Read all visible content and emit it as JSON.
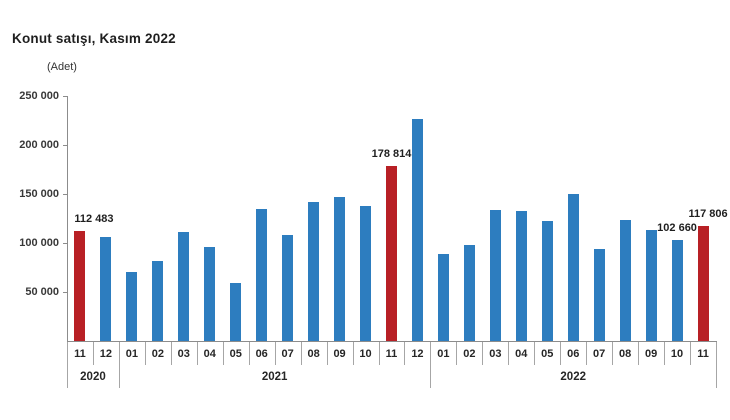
{
  "chart_data": {
    "type": "bar",
    "title": "Konut satışı, Kasım 2022",
    "unit": "(Adet)",
    "ylim": [
      0,
      250000
    ],
    "grid": false,
    "legend": null,
    "bar_color": "#2d7dbf",
    "highlight_color": "#b82025",
    "axis_color": "#8c8c8c",
    "yticks": [
      {
        "value": 250000,
        "label": "250 000"
      },
      {
        "value": 200000,
        "label": "200 000"
      },
      {
        "value": 150000,
        "label": "150 000"
      },
      {
        "value": 100000,
        "label": "100 000"
      },
      {
        "value": 50000,
        "label": "50 000"
      }
    ],
    "categories": [
      "11",
      "12",
      "01",
      "02",
      "03",
      "04",
      "05",
      "06",
      "07",
      "08",
      "09",
      "10",
      "11",
      "12",
      "01",
      "02",
      "03",
      "04",
      "05",
      "06",
      "07",
      "08",
      "09",
      "10",
      "11"
    ],
    "values": [
      112483,
      105981,
      70587,
      81222,
      111241,
      95863,
      59166,
      134731,
      107785,
      141400,
      147143,
      137401,
      178814,
      226503,
      88306,
      97587,
      134170,
      133058,
      122768,
      150509,
      93902,
      123491,
      113402,
      102660,
      117806
    ],
    "highlight_indices": [
      0,
      12,
      24
    ],
    "data_labels": [
      {
        "index": 0,
        "text": "112 483",
        "dx": 14
      },
      {
        "index": 12,
        "text": "178 814",
        "dx": 0
      },
      {
        "index": 23,
        "text": "102 660",
        "dx": 0
      },
      {
        "index": 24,
        "text": "117 806",
        "dx": 5
      }
    ],
    "year_groups": [
      {
        "label": "2020",
        "start": 0,
        "count": 2
      },
      {
        "label": "2021",
        "start": 2,
        "count": 12
      },
      {
        "label": "2022",
        "start": 14,
        "count": 11
      }
    ]
  }
}
